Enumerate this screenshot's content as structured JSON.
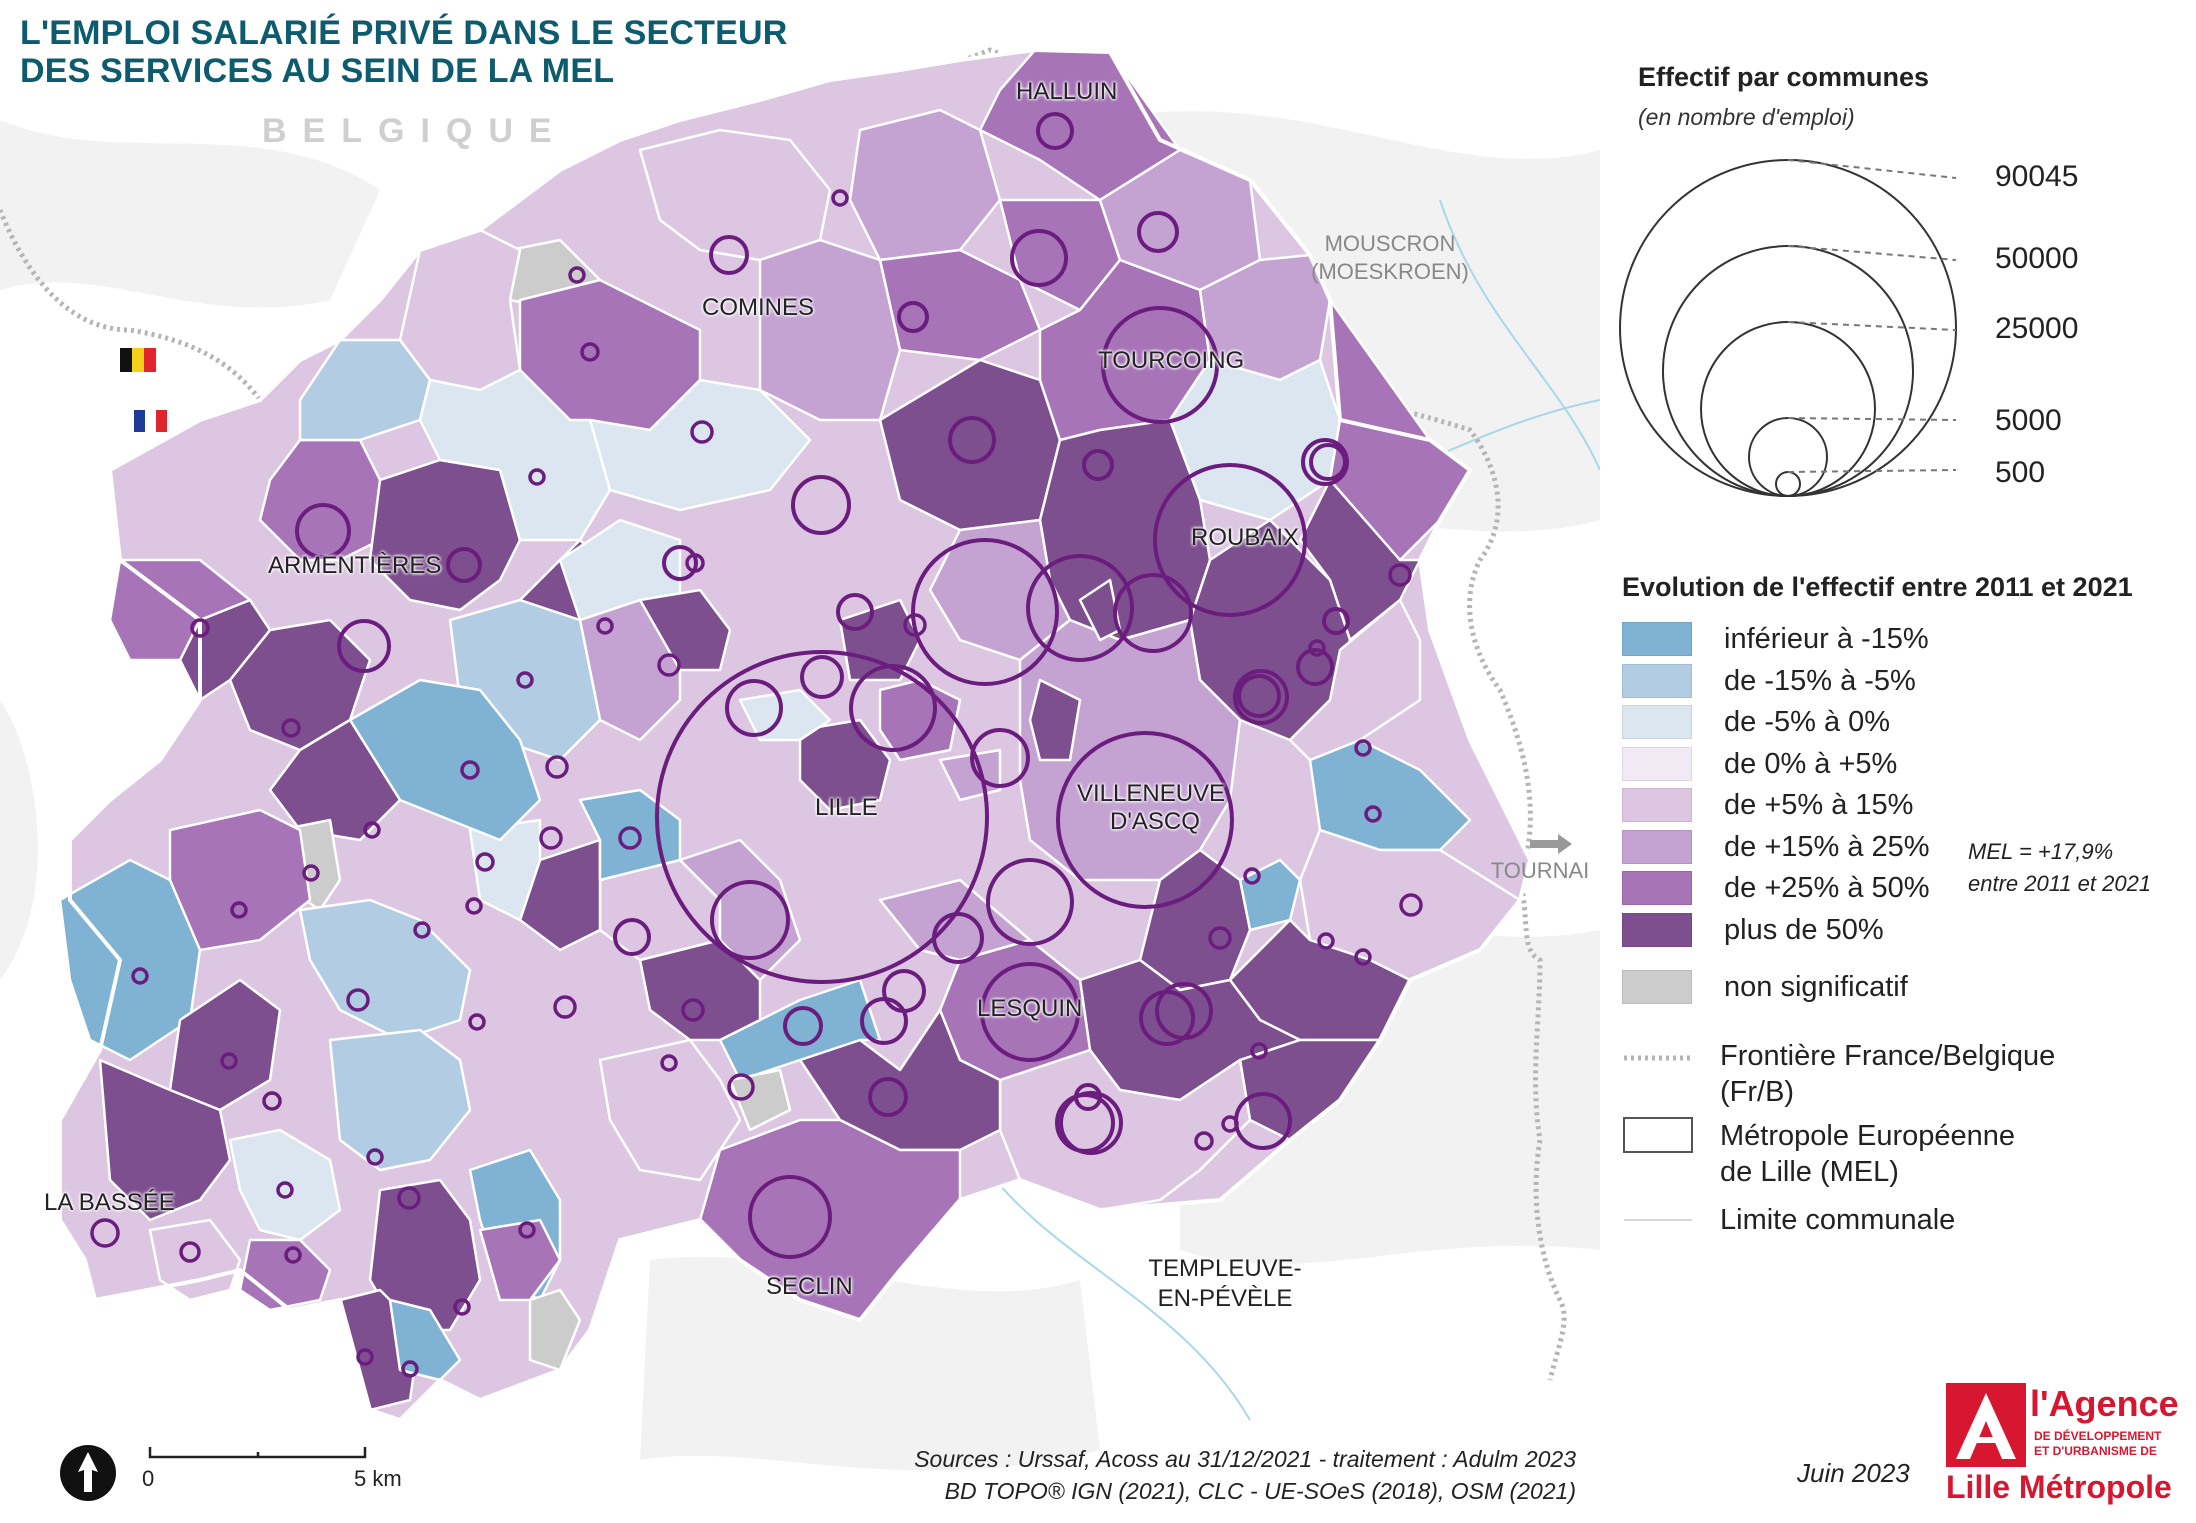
{
  "title": {
    "line1": "L'EMPLOI SALARIÉ PRIVÉ DANS LE SECTEUR",
    "line2": "DES SERVICES AU SEIN DE LA MEL"
  },
  "belgique_label": "BELGIQUE",
  "places": {
    "halluin": "HALLUIN",
    "comines": "COMINES",
    "tourcoing": "TOURCOING",
    "roubaix": "ROUBAIX",
    "armentieres": "ARMENTIÈRES",
    "lille": "LILLE",
    "villeneuve_1": "VILLENEUVE",
    "villeneuve_2": "D'ASCQ",
    "lesquin": "LESQUIN",
    "seclin": "SECLIN",
    "la_bassee": "LA BASSÉE",
    "mouscron_1": "MOUSCRON",
    "mouscron_2": "(MOESKROEN)",
    "tournai": "TOURNAI",
    "templeuve_1": "TEMPLEUVE-",
    "templeuve_2": "EN-PÉVÈLE"
  },
  "scale_bar": {
    "start": "0",
    "end": "5 km"
  },
  "legend": {
    "size_title": "Effectif par communes",
    "size_subtitle": "(en nombre d'emploi)",
    "size_values": [
      "90045",
      "50000",
      "25000",
      "5000",
      "500"
    ],
    "evolution_title": "Evolution de l'effectif entre 2011 et 2021",
    "classes": [
      {
        "label": "inférieur à -15%",
        "color": "#7fb2d3"
      },
      {
        "label": "de -15% à -5%",
        "color": "#b2cde3"
      },
      {
        "label": "de -5% à 0%",
        "color": "#dbe6f0"
      },
      {
        "label": "de 0% à +5%",
        "color": "#f1e9f4"
      },
      {
        "label": "de +5% à 15%",
        "color": "#dcc6e2"
      },
      {
        "label": "de +15% à 25%",
        "color": "#c4a3d3"
      },
      {
        "label": "de +25% à 50%",
        "color": "#a774b8"
      },
      {
        "label": "plus de 50%",
        "color": "#7e4f8f"
      }
    ],
    "non_significant": {
      "label": "non significatif",
      "color": "#cccccc"
    },
    "border_line1": "Frontière France/Belgique",
    "border_line2": "(Fr/B)",
    "mel_line1": "Métropole Européenne",
    "mel_line2": "de Lille (MEL)",
    "commune_limit": "Limite communale",
    "mel_note_1": "MEL = +17,9%",
    "mel_note_2": "entre 2011 et 2021"
  },
  "sources": {
    "line1": "Sources :  Urssaf, Acoss au 31/12/2021 - traitement : Adulm 2023",
    "line2": "BD TOPO® IGN (2021), CLC - UE-SOeS (2018), OSM (2021)"
  },
  "date": "Juin 2023",
  "agency": {
    "name1": "l'Agence",
    "name2a": "DE DÉVELOPPEMENT",
    "name2b": "ET D'URBANISME DE",
    "name3": "Lille Métropole"
  },
  "colors": {
    "title": "#0d5b6e",
    "circle": "#6b1d7e",
    "agency_red": "#d7172f"
  }
}
